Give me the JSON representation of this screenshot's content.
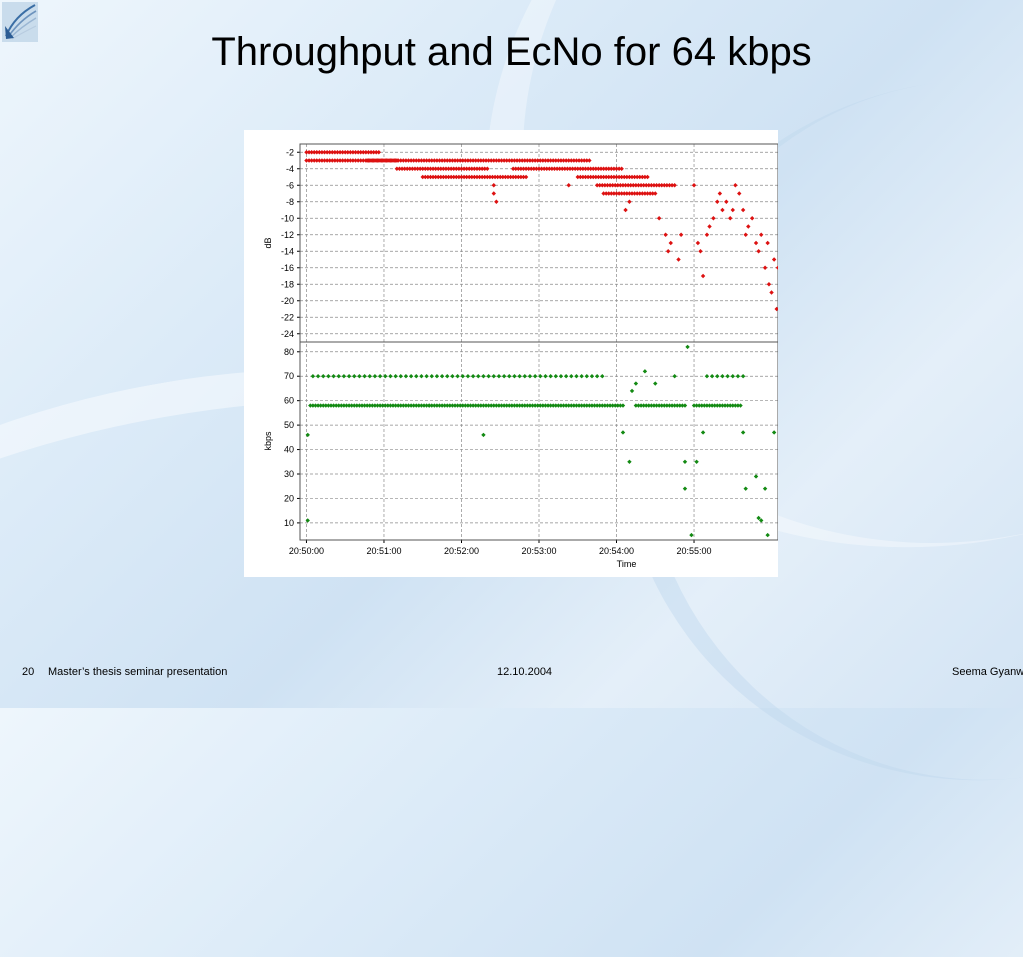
{
  "slide": {
    "title": "Throughput and EcNo for 64 kbps",
    "footer": {
      "page": "20",
      "left": "Master’s thesis seminar presentation",
      "date": "12.10.2004",
      "right": "Seema Gyanw"
    }
  },
  "chart_data": [
    {
      "type": "scatter",
      "title": "",
      "xlabel": "Time",
      "ylabel": "dB",
      "xlim": [
        "20:49:55",
        "20:56:05"
      ],
      "ylim": [
        -25,
        -1
      ],
      "yticks": [
        -2,
        -4,
        -6,
        -8,
        -10,
        -12,
        -14,
        -16,
        -18,
        -20,
        -22,
        -24
      ],
      "grid": true,
      "color": "#dd1111",
      "clusters": [
        {
          "xfrom": "20:50:00",
          "xto": "20:50:57",
          "y": -2
        },
        {
          "xfrom": "20:50:00",
          "xto": "20:51:10",
          "y": -3
        },
        {
          "xfrom": "20:50:47",
          "xto": "20:53:40",
          "y": -3
        },
        {
          "xfrom": "20:51:10",
          "xto": "20:52:20",
          "y": -4
        },
        {
          "xfrom": "20:51:30",
          "xto": "20:52:50",
          "y": -5
        },
        {
          "xfrom": "20:52:40",
          "xto": "20:54:05",
          "y": -4
        },
        {
          "xfrom": "20:53:30",
          "xto": "20:54:25",
          "y": -5
        },
        {
          "xfrom": "20:53:45",
          "xto": "20:54:45",
          "y": -6
        },
        {
          "xfrom": "20:53:50",
          "xto": "20:54:30",
          "y": -7
        }
      ],
      "points": [
        [
          "20:52:25",
          -6
        ],
        [
          "20:52:25",
          -7
        ],
        [
          "20:52:27",
          -8
        ],
        [
          "20:53:23",
          -6
        ],
        [
          "20:54:07",
          -9
        ],
        [
          "20:54:10",
          -8
        ],
        [
          "20:54:33",
          -10
        ],
        [
          "20:54:38",
          -12
        ],
        [
          "20:54:40",
          -14
        ],
        [
          "20:54:42",
          -13
        ],
        [
          "20:54:48",
          -15
        ],
        [
          "20:54:50",
          -12
        ],
        [
          "20:55:00",
          -6
        ],
        [
          "20:55:03",
          -13
        ],
        [
          "20:55:05",
          -14
        ],
        [
          "20:55:07",
          -17
        ],
        [
          "20:55:10",
          -12
        ],
        [
          "20:55:12",
          -11
        ],
        [
          "20:55:15",
          -10
        ],
        [
          "20:55:18",
          -8
        ],
        [
          "20:55:20",
          -7
        ],
        [
          "20:55:22",
          -9
        ],
        [
          "20:55:25",
          -8
        ],
        [
          "20:55:28",
          -10
        ],
        [
          "20:55:30",
          -9
        ],
        [
          "20:55:32",
          -6
        ],
        [
          "20:55:35",
          -7
        ],
        [
          "20:55:38",
          -9
        ],
        [
          "20:55:40",
          -12
        ],
        [
          "20:55:42",
          -11
        ],
        [
          "20:55:45",
          -10
        ],
        [
          "20:55:48",
          -13
        ],
        [
          "20:55:50",
          -14
        ],
        [
          "20:55:52",
          -12
        ],
        [
          "20:55:55",
          -16
        ],
        [
          "20:55:57",
          -13
        ],
        [
          "20:55:58",
          -18
        ],
        [
          "20:56:00",
          -19
        ],
        [
          "20:56:02",
          -15
        ],
        [
          "20:56:04",
          -21
        ],
        [
          "20:56:05",
          -16
        ]
      ]
    },
    {
      "type": "scatter",
      "title": "",
      "xlabel": "Time",
      "ylabel": "kbps",
      "xlim": [
        "20:49:55",
        "20:56:05"
      ],
      "ylim": [
        3,
        84
      ],
      "yticks": [
        80,
        70,
        60,
        50,
        40,
        30,
        20,
        10
      ],
      "xticks": [
        "20:50:00",
        "20:51:00",
        "20:52:00",
        "20:53:00",
        "20:54:00",
        "20:55:00"
      ],
      "grid": true,
      "color": "#138a13",
      "clusters": [
        {
          "xfrom": "20:50:03",
          "xto": "20:54:05",
          "y": 58,
          "step": 2
        },
        {
          "xfrom": "20:54:15",
          "xto": "20:54:53",
          "y": 58,
          "step": 2
        },
        {
          "xfrom": "20:55:00",
          "xto": "20:55:37",
          "y": 58,
          "step": 2
        },
        {
          "xfrom": "20:50:05",
          "xto": "20:53:50",
          "y": 70,
          "step": 4
        },
        {
          "xfrom": "20:55:10",
          "xto": "20:55:38",
          "y": 70,
          "step": 4
        }
      ],
      "points": [
        [
          "20:50:01",
          46
        ],
        [
          "20:50:01",
          11
        ],
        [
          "20:51:35",
          58
        ],
        [
          "20:52:17",
          46
        ],
        [
          "20:54:05",
          47
        ],
        [
          "20:54:10",
          35
        ],
        [
          "20:54:12",
          64
        ],
        [
          "20:54:15",
          67
        ],
        [
          "20:54:22",
          72
        ],
        [
          "20:54:30",
          67
        ],
        [
          "20:54:45",
          70
        ],
        [
          "20:54:53",
          35
        ],
        [
          "20:54:53",
          24
        ],
        [
          "20:54:55",
          82
        ],
        [
          "20:54:58",
          5
        ],
        [
          "20:55:02",
          35
        ],
        [
          "20:55:07",
          47
        ],
        [
          "20:55:38",
          47
        ],
        [
          "20:55:40",
          24
        ],
        [
          "20:55:48",
          29
        ],
        [
          "20:55:50",
          12
        ],
        [
          "20:55:52",
          11
        ],
        [
          "20:55:55",
          24
        ],
        [
          "20:55:57",
          5
        ],
        [
          "20:56:02",
          47
        ]
      ]
    }
  ]
}
